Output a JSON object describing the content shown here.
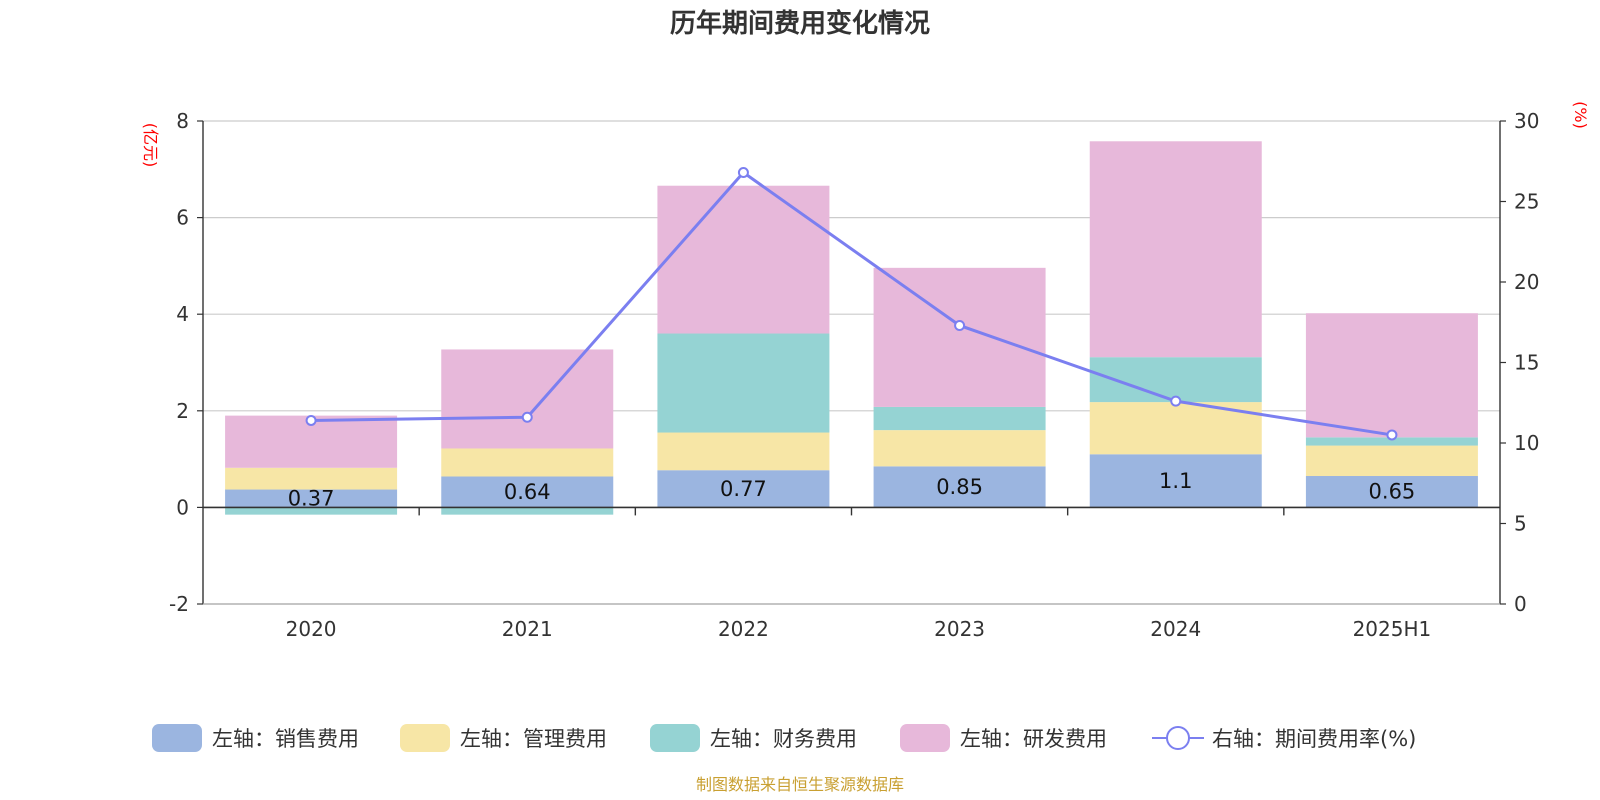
{
  "chart_data": {
    "type": "bar",
    "title": "历年期间费用变化情况",
    "categories": [
      "2020",
      "2021",
      "2022",
      "2023",
      "2024",
      "2025H1"
    ],
    "left_axis": {
      "unit": "(亿元)",
      "ylim": [
        -2,
        8
      ],
      "ticks": [
        "8",
        "6",
        "4",
        "2",
        "0",
        "-2"
      ]
    },
    "right_axis": {
      "unit": "(%)",
      "ylim": [
        0,
        30
      ],
      "ticks": [
        "30",
        "25",
        "20",
        "15",
        "10",
        "5",
        "0"
      ]
    },
    "series": [
      {
        "name": "左轴：销售费用",
        "axis": "left",
        "color": "#9bb5e0",
        "values": [
          0.37,
          0.64,
          0.77,
          0.85,
          1.1,
          0.65
        ],
        "labels": [
          "0.37",
          "0.64",
          "0.77",
          "0.85",
          "1.1",
          "0.65"
        ]
      },
      {
        "name": "左轴：管理费用",
        "axis": "left",
        "color": "#f7e6a6",
        "values": [
          0.45,
          0.58,
          0.78,
          0.75,
          1.08,
          0.63
        ]
      },
      {
        "name": "左轴：财务费用",
        "axis": "left",
        "color": "#95d3d3",
        "values": [
          -0.15,
          -0.15,
          2.05,
          0.48,
          0.93,
          0.17
        ]
      },
      {
        "name": "左轴：研发费用",
        "axis": "left",
        "color": "#e7b8da",
        "values": [
          1.08,
          2.05,
          3.06,
          2.88,
          4.47,
          2.57
        ]
      }
    ],
    "line_series": {
      "name": "右轴：期间费用率(%)",
      "axis": "right",
      "color": "#7b7ff0",
      "values": [
        11.4,
        11.6,
        26.8,
        17.3,
        12.6,
        10.5
      ]
    },
    "grid": true,
    "legend_position": "bottom"
  },
  "source": {
    "text": "制图数据来自恒生聚源数据库",
    "color": "#c9a032"
  }
}
